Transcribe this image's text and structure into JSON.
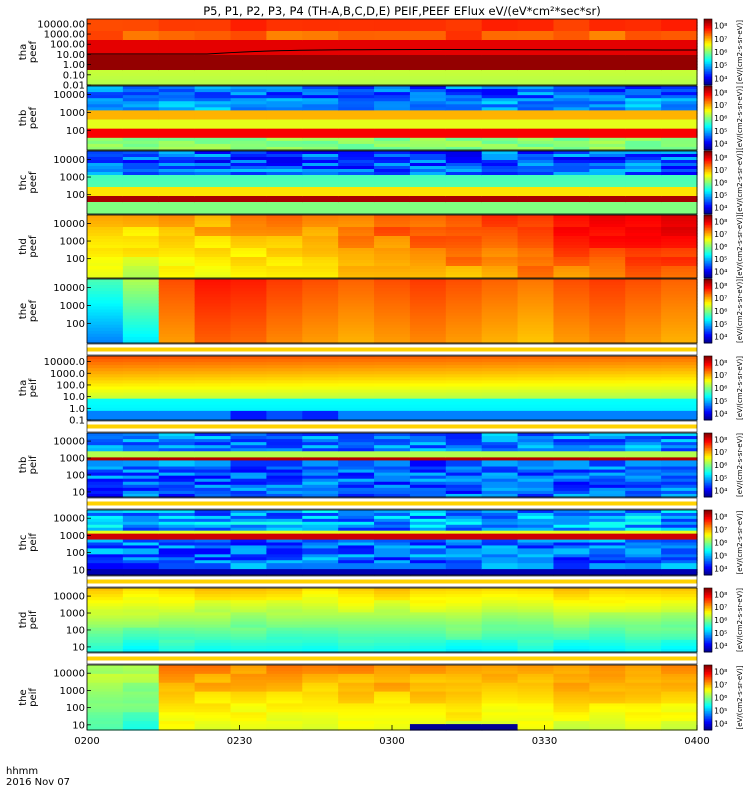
{
  "title": "P5, P1, P2, P3, P4 (TH-A,B,C,D,E) PEIF,PEEF EFlux eV/(eV*cm²*sec*sr)",
  "footer": {
    "time_label": "hhmm",
    "date_label": "2016 Nov 07"
  },
  "chart_data": {
    "type": "heatmap",
    "x_ticks": [
      "0200",
      "0230",
      "0300",
      "0330",
      "0400"
    ],
    "x_range": [
      "0200",
      "0400"
    ],
    "colorbar_ticks": [
      "10⁴",
      "10⁵",
      "10⁶",
      "10⁷",
      "10⁸"
    ],
    "colorbar_label": "[eV/(cm2-s-sr-eV)]",
    "panels": [
      {
        "ylabel": [
          "tha",
          "peef"
        ],
        "yticks": [
          "10000.00",
          "1000.00",
          "100.00",
          "10.00",
          "1.00",
          "0.10",
          "0.01"
        ],
        "yrange": [
          0.01,
          30000
        ],
        "scale": "log",
        "profile": "thaPeef",
        "dark_line": true
      },
      {
        "ylabel": [
          "thb",
          "peef"
        ],
        "yticks": [
          "10000",
          "1000",
          "100"
        ],
        "yrange": [
          8,
          30000
        ],
        "scale": "log",
        "profile": "peefBand"
      },
      {
        "ylabel": [
          "thc",
          "peef"
        ],
        "yticks": [
          "10000",
          "1000",
          "100"
        ],
        "yrange": [
          8,
          30000
        ],
        "scale": "log",
        "profile": "peefBand2"
      },
      {
        "ylabel": [
          "thd",
          "peef"
        ],
        "yticks": [
          "10000",
          "1000",
          "100"
        ],
        "yrange": [
          8,
          30000
        ],
        "scale": "log",
        "profile": "thdPeef"
      },
      {
        "ylabel": [
          "the",
          "peef"
        ],
        "yticks": [
          "10000",
          "1000",
          "100"
        ],
        "yrange": [
          8,
          30000
        ],
        "scale": "log",
        "profile": "thePeef"
      },
      {
        "ylabel": [
          "tha",
          "peif"
        ],
        "yticks": [
          "10000.0",
          "1000.0",
          "100.0",
          "10.0",
          "1.0",
          "0.1"
        ],
        "yrange": [
          0.1,
          30000
        ],
        "scale": "log",
        "profile": "thaPeif"
      },
      {
        "ylabel": [
          "thb",
          "peif"
        ],
        "yticks": [
          "10000",
          "1000",
          "100",
          "10"
        ],
        "yrange": [
          5,
          30000
        ],
        "scale": "log",
        "profile": "peifBand"
      },
      {
        "ylabel": [
          "thc",
          "peif"
        ],
        "yticks": [
          "10000",
          "1000",
          "100",
          "10"
        ],
        "yrange": [
          5,
          30000
        ],
        "scale": "log",
        "profile": "peifBand2"
      },
      {
        "ylabel": [
          "thd",
          "peif"
        ],
        "yticks": [
          "10000",
          "1000",
          "100",
          "10"
        ],
        "yrange": [
          5,
          30000
        ],
        "scale": "log",
        "profile": "thdPeif"
      },
      {
        "ylabel": [
          "the",
          "peif"
        ],
        "yticks": [
          "10000",
          "1000",
          "100",
          "10"
        ],
        "yrange": [
          5,
          30000
        ],
        "scale": "log",
        "profile": "thePeif"
      }
    ]
  }
}
